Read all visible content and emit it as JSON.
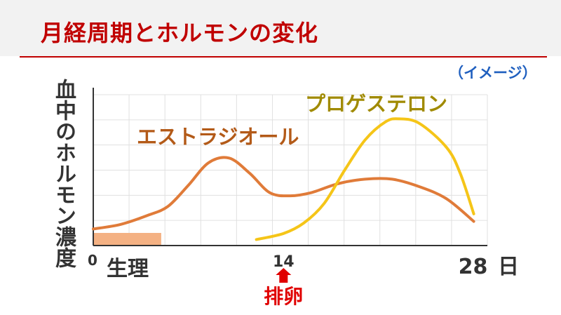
{
  "header": {
    "title": "月経周期とホルモンの変化",
    "note": "（イメージ）"
  },
  "colors": {
    "title": "#c00000",
    "note": "#1f5fbf",
    "estradiol": "#e07b39",
    "progesterone": "#f5c518",
    "ovulation": "#e00000",
    "menstruation": "#f4b183",
    "grid": "#e0e0e0"
  },
  "chart_data": {
    "type": "line",
    "title": "月経周期とホルモンの変化",
    "ylabel": "血中のホルモン濃度",
    "xlabel": "日",
    "xlim": [
      0,
      29
    ],
    "ylim": [
      0,
      10
    ],
    "grid": true,
    "x_ticks": [
      {
        "value": 0,
        "label": "0"
      },
      {
        "value": 14,
        "label": "14"
      },
      {
        "value": 28,
        "label": "28"
      }
    ],
    "series": [
      {
        "name": "エストラジオール",
        "x": [
          0,
          2,
          4,
          5.5,
          7,
          8.5,
          10,
          11.5,
          13,
          14.5,
          16,
          18,
          20,
          22,
          24,
          26,
          28
        ],
        "y": [
          1.1,
          1.4,
          2.0,
          2.6,
          4.0,
          5.5,
          5.8,
          4.8,
          3.5,
          3.3,
          3.5,
          4.1,
          4.4,
          4.4,
          3.9,
          3.1,
          1.6
        ]
      },
      {
        "name": "プロゲステロン",
        "x": [
          12,
          14,
          15.5,
          17,
          18.5,
          20,
          21.5,
          22.5,
          24,
          26,
          27,
          28
        ],
        "y": [
          0.4,
          0.8,
          1.5,
          2.8,
          5.0,
          7.0,
          8.2,
          8.4,
          8.1,
          6.5,
          4.8,
          2.1
        ]
      }
    ],
    "annotations": {
      "menstruation": {
        "label": "生理",
        "start": 0,
        "end": 5
      },
      "ovulation": {
        "label": "排卵",
        "day": 14
      }
    }
  }
}
